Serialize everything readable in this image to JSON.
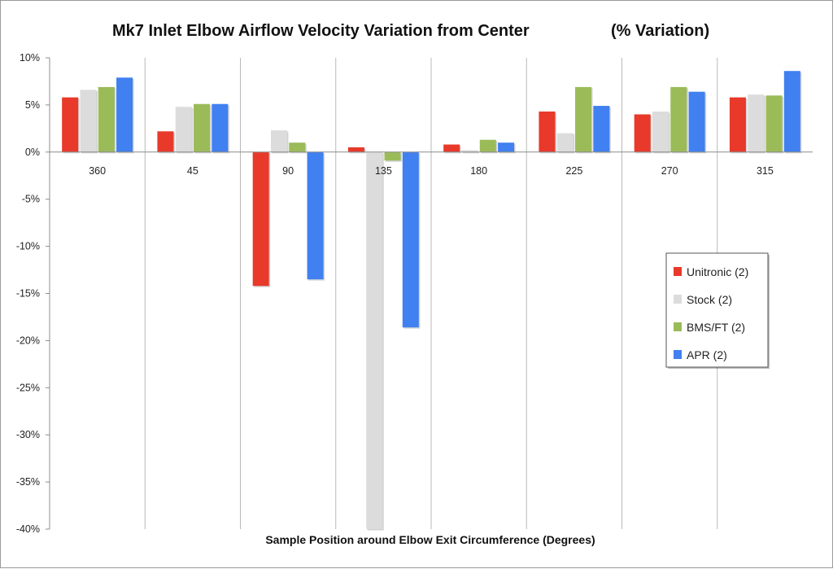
{
  "chart_data": {
    "type": "bar",
    "title_main": "Mk7 Inlet Elbow Airflow Velocity Variation from Center",
    "title_suffix": "(% Variation)",
    "xlabel": "Sample Position around Elbow Exit Circumference (Degrees)",
    "ylabel": "",
    "ylim": [
      -40,
      10
    ],
    "yticks": [
      10,
      5,
      0,
      -5,
      -10,
      -15,
      -20,
      -25,
      -30,
      -35,
      -40
    ],
    "ytick_labels": [
      "10%",
      "5%",
      "0%",
      "-5%",
      "-10%",
      "-15%",
      "-20%",
      "-25%",
      "-30%",
      "-35%",
      "-40%"
    ],
    "grid": "vertical category separators",
    "legend_position": "right-middle",
    "categories": [
      "360",
      "45",
      "90",
      "135",
      "180",
      "225",
      "270",
      "315"
    ],
    "series": [
      {
        "name": "Unitronic (2)",
        "color": "#e8392a",
        "values": [
          5.8,
          2.2,
          -14.2,
          0.5,
          0.8,
          4.3,
          4.0,
          5.8
        ]
      },
      {
        "name": "Stock (2)",
        "color": "#dcdcdc",
        "values": [
          6.6,
          4.8,
          2.3,
          -40.0,
          0.2,
          2.0,
          4.3,
          6.1
        ]
      },
      {
        "name": "BMS/FT (2)",
        "color": "#9bbb59",
        "values": [
          6.9,
          5.1,
          1.0,
          -0.9,
          1.3,
          6.9,
          6.9,
          6.0
        ]
      },
      {
        "name": "APR (2)",
        "color": "#4080f0",
        "values": [
          7.9,
          5.1,
          -13.5,
          -18.6,
          1.0,
          4.9,
          6.4,
          8.6
        ]
      }
    ]
  }
}
